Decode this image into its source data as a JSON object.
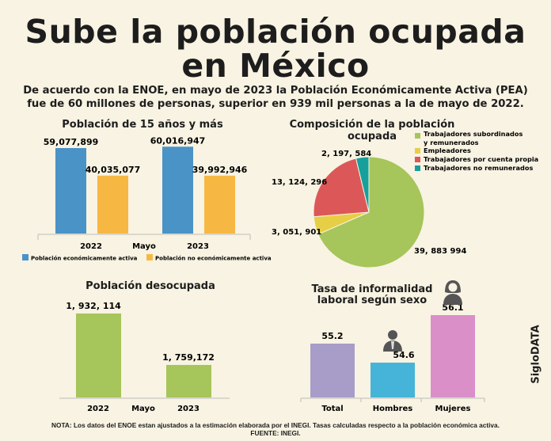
{
  "header": {
    "title_line1": "Sube la población ocupada",
    "title_line2": "en México",
    "subtitle_line1": "De acuerdo con la ENOE, en mayo de 2023 la Población Económicamente Activa (PEA)",
    "subtitle_line2": "fue de 60 millones de personas, superior en 939 mil personas a la de mayo de 2022."
  },
  "chart_data": [
    {
      "type": "bar",
      "title": "Población de 15 años y más",
      "xlabel": "Mayo",
      "categories": [
        "2022",
        "2023"
      ],
      "series": [
        {
          "name": "Población económicamente activa",
          "values": [
            59077899,
            60016947
          ],
          "labels": [
            "59,077,899",
            "60,016,947"
          ],
          "color": "#4a93c6"
        },
        {
          "name": "Población no económicamente activa",
          "values": [
            40035077,
            39992946
          ],
          "labels": [
            "40,035,077",
            "39,992,946"
          ],
          "color": "#f7b843"
        }
      ],
      "ylim": [
        0,
        65000000
      ],
      "legend": "bottom"
    },
    {
      "type": "pie",
      "title": "Composición de la población ocupada",
      "slices": [
        {
          "name": "Trabajadores subordinados y remunerados",
          "legend_line1": "Trabajadores subordinados",
          "legend_line2": "y remunerados",
          "value": 39883994,
          "label": "39, 883 994",
          "color": "#a6c55a"
        },
        {
          "name": "Empleadores",
          "value": 3051901,
          "label": "3, 051, 901",
          "color": "#e6cf45"
        },
        {
          "name": "Trabajadores por cuenta propia",
          "value": 13124296,
          "label": "13, 124, 296",
          "color": "#dc5858"
        },
        {
          "name": "Trabajadores no remunerados",
          "value": 2197584,
          "label": "2, 197, 584",
          "color": "#16a09b"
        }
      ],
      "legend": "top-right"
    },
    {
      "type": "bar",
      "title": "Población desocupada",
      "xlabel": "Mayo",
      "categories": [
        "2022",
        "2023"
      ],
      "values": [
        1932114,
        1759172
      ],
      "labels": [
        "1, 932, 114",
        "1, 759,172"
      ],
      "color": "#a6c55a",
      "ylim": [
        1650000,
        1950000
      ]
    },
    {
      "type": "bar",
      "title": "Tasa de informalidad laboral según sexo",
      "title_line1": "Tasa de informalidad",
      "title_line2": "laboral según sexo",
      "categories": [
        "Total",
        "Hombres",
        "Mujeres"
      ],
      "values": [
        55.2,
        54.6,
        56.1
      ],
      "labels": [
        "55.2",
        "54.6",
        "56.1"
      ],
      "colors": [
        "#a89cc9",
        "#46b4d8",
        "#da8fc8"
      ],
      "ylim": [
        53.5,
        56.5
      ]
    }
  ],
  "footer": {
    "note": "NOTA: Los datos del ENOE estan ajustados a la estimación elaborada por el INEGI. Tasas calculadas respecto a la población económica activa.",
    "source": "FUENTE: INEGI.",
    "brand": "SigloDATA"
  }
}
